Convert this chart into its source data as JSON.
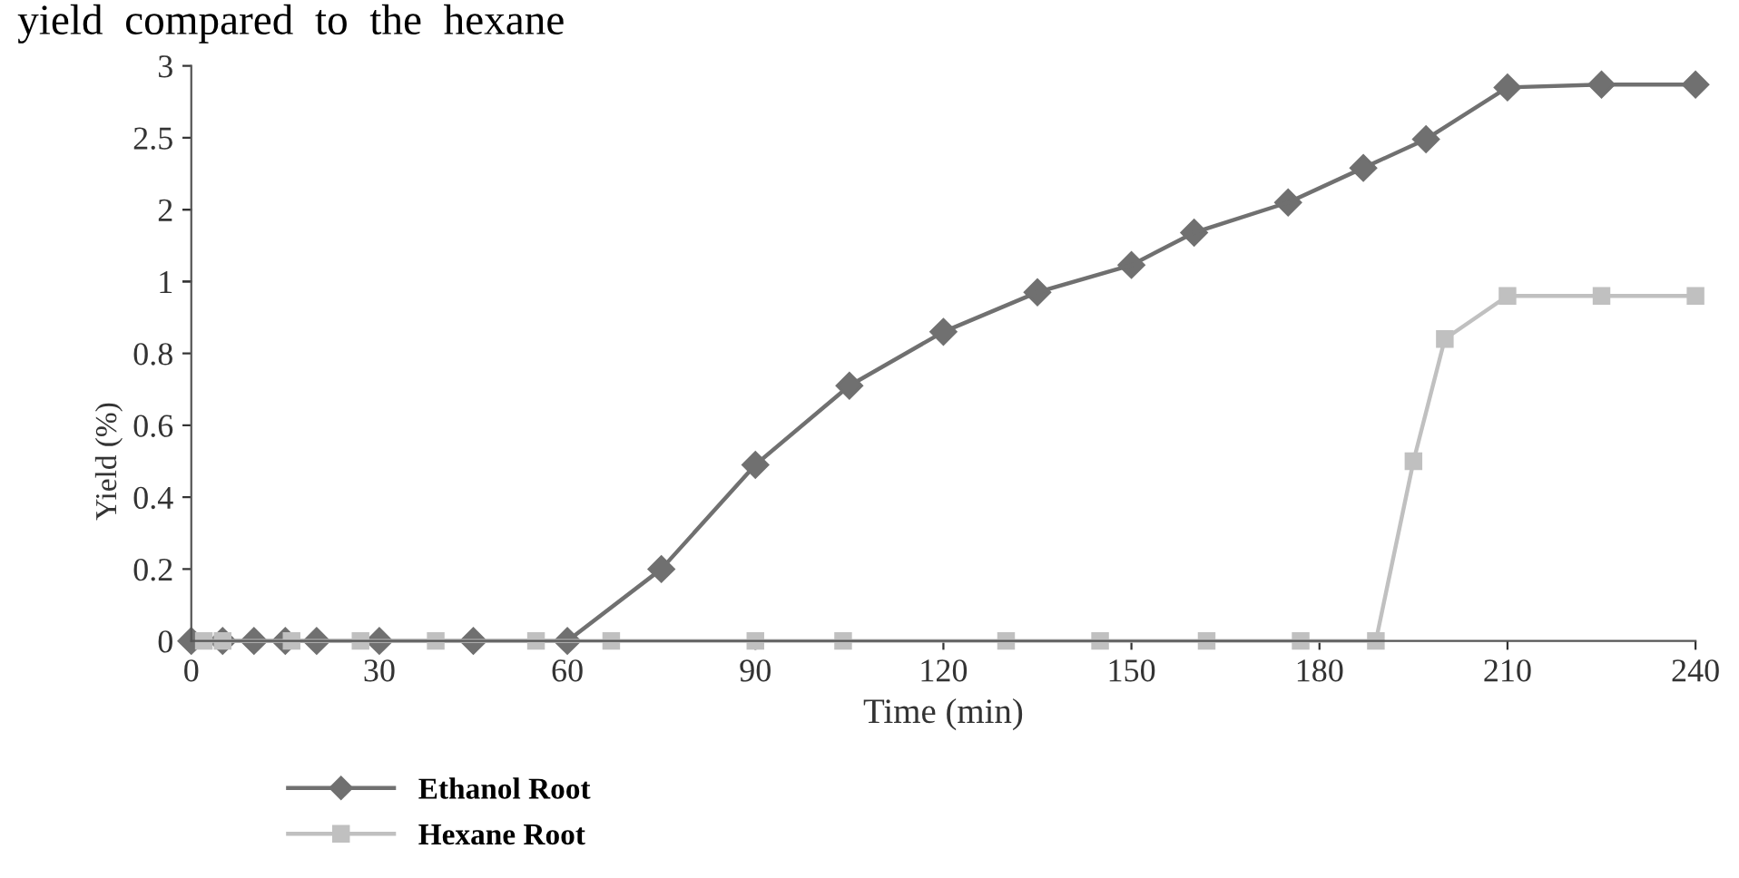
{
  "chart_data": [
    {
      "type": "line",
      "annotations": [
        "yield  compared  to  the  hexane"
      ],
      "xlim": [
        0,
        240
      ],
      "ylim": [
        2,
        3
      ],
      "yticks": [
        {
          "value": 2,
          "label": null
        },
        2.5,
        3
      ],
      "tick_labels": "y",
      "grid": false,
      "line_style": "solid",
      "series": [
        {
          "color": "#707070",
          "marker": "diamond",
          "x": [
            175,
            187,
            197,
            210,
            225,
            240
          ],
          "values": [
            2.05,
            2.29,
            2.49,
            2.85,
            2.87,
            2.87
          ]
        }
      ]
    },
    {
      "type": "line",
      "xlim": [
        0,
        240
      ],
      "ylim": [
        1,
        2
      ],
      "yticks": [
        1,
        2
      ],
      "tick_labels": "y",
      "grid": false,
      "line_style": "solid",
      "series": [
        {
          "color": "#707070",
          "marker": "diamond",
          "x": [
            150,
            160
          ],
          "values": [
            1.23,
            1.68
          ]
        }
      ]
    },
    {
      "type": "line",
      "xlabel": "Time (min)",
      "ylabel": "Yield (%)",
      "xlim": [
        0,
        240
      ],
      "xticks": [
        0,
        30,
        60,
        90,
        120,
        150,
        180,
        210,
        240
      ],
      "ylim": [
        0,
        1
      ],
      "yticks": [
        0,
        0.2,
        0.4,
        0.6,
        0.8,
        {
          "value": 1,
          "label": null
        }
      ],
      "grid": false,
      "legend": "bottom left",
      "line_style": "solid",
      "series": [
        {
          "name": "Ethanol Root",
          "color": "#707070",
          "marker": "diamond",
          "x": [
            0,
            5,
            10,
            15,
            20,
            30,
            45,
            60,
            75,
            90,
            105,
            120,
            135
          ],
          "values": [
            0,
            0,
            0,
            0,
            0,
            0,
            0,
            0,
            0.2,
            0.49,
            0.71,
            0.86,
            0.97
          ]
        },
        {
          "name": "Hexane Root",
          "color": "#c0c0c0",
          "marker": "square",
          "x": [
            2,
            5,
            16,
            27,
            39,
            55,
            67,
            90,
            104,
            130,
            145,
            162,
            177,
            189,
            195,
            200,
            210,
            225,
            240
          ],
          "values": [
            0,
            0,
            0,
            0,
            0,
            0,
            0,
            0,
            0,
            0,
            0,
            0,
            0,
            0,
            0.5,
            0.84,
            0.96,
            0.96,
            0.96
          ]
        }
      ]
    }
  ]
}
